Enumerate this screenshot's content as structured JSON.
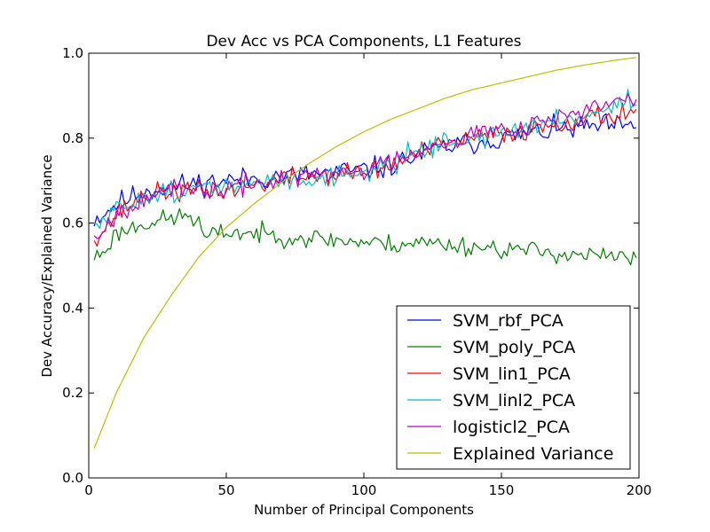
{
  "chart_data": {
    "type": "line",
    "title": "Dev Acc vs PCA Components, L1 Features",
    "xlabel": "Number of Principal Components",
    "ylabel": "Dev Accuracy/Explained Variance",
    "xlim": [
      0,
      200
    ],
    "ylim": [
      0.0,
      1.0
    ],
    "xticks": [
      0,
      50,
      100,
      150,
      200
    ],
    "yticks": [
      0.0,
      0.2,
      0.4,
      0.6,
      0.8,
      1.0
    ],
    "xtick_labels": [
      "0",
      "50",
      "100",
      "150",
      "200"
    ],
    "ytick_labels": [
      "0.0",
      "0.2",
      "0.4",
      "0.6",
      "0.8",
      "1.0"
    ],
    "grid": false,
    "legend_position": "lower-right",
    "x_range": [
      2,
      199
    ],
    "series": [
      {
        "name": "SVM_rbf_PCA",
        "color": "#0000ff",
        "anchors": [
          [
            2,
            0.61
          ],
          [
            5,
            0.62
          ],
          [
            10,
            0.645
          ],
          [
            20,
            0.675
          ],
          [
            30,
            0.685
          ],
          [
            40,
            0.695
          ],
          [
            50,
            0.7
          ],
          [
            60,
            0.705
          ],
          [
            70,
            0.71
          ],
          [
            80,
            0.715
          ],
          [
            90,
            0.72
          ],
          [
            100,
            0.725
          ],
          [
            110,
            0.735
          ],
          [
            120,
            0.76
          ],
          [
            130,
            0.78
          ],
          [
            140,
            0.79
          ],
          [
            150,
            0.8
          ],
          [
            160,
            0.81
          ],
          [
            170,
            0.82
          ],
          [
            180,
            0.825
          ],
          [
            190,
            0.83
          ],
          [
            199,
            0.82
          ]
        ],
        "noise": 0.02,
        "seed": 11
      },
      {
        "name": "SVM_poly_PCA",
        "color": "#008000",
        "anchors": [
          [
            2,
            0.52
          ],
          [
            5,
            0.53
          ],
          [
            10,
            0.575
          ],
          [
            20,
            0.6
          ],
          [
            30,
            0.61
          ],
          [
            36,
            0.62
          ],
          [
            40,
            0.6
          ],
          [
            42,
            0.565
          ],
          [
            50,
            0.58
          ],
          [
            60,
            0.575
          ],
          [
            70,
            0.57
          ],
          [
            80,
            0.565
          ],
          [
            90,
            0.56
          ],
          [
            100,
            0.555
          ],
          [
            110,
            0.55
          ],
          [
            120,
            0.555
          ],
          [
            130,
            0.55
          ],
          [
            140,
            0.545
          ],
          [
            150,
            0.54
          ],
          [
            160,
            0.535
          ],
          [
            170,
            0.53
          ],
          [
            180,
            0.525
          ],
          [
            190,
            0.52
          ],
          [
            199,
            0.515
          ]
        ],
        "noise": 0.017,
        "seed": 23
      },
      {
        "name": "SVM_lin1_PCA",
        "color": "#ff0000",
        "anchors": [
          [
            2,
            0.57
          ],
          [
            5,
            0.58
          ],
          [
            10,
            0.62
          ],
          [
            20,
            0.665
          ],
          [
            30,
            0.675
          ],
          [
            40,
            0.675
          ],
          [
            50,
            0.675
          ],
          [
            60,
            0.69
          ],
          [
            70,
            0.705
          ],
          [
            80,
            0.71
          ],
          [
            90,
            0.715
          ],
          [
            100,
            0.72
          ],
          [
            110,
            0.735
          ],
          [
            120,
            0.765
          ],
          [
            130,
            0.785
          ],
          [
            140,
            0.8
          ],
          [
            150,
            0.81
          ],
          [
            160,
            0.82
          ],
          [
            170,
            0.835
          ],
          [
            180,
            0.845
          ],
          [
            190,
            0.855
          ],
          [
            199,
            0.865
          ]
        ],
        "noise": 0.018,
        "seed": 37
      },
      {
        "name": "SVM_linl2_PCA",
        "color": "#00bfbf",
        "anchors": [
          [
            2,
            0.59
          ],
          [
            5,
            0.6
          ],
          [
            10,
            0.63
          ],
          [
            20,
            0.665
          ],
          [
            30,
            0.675
          ],
          [
            40,
            0.68
          ],
          [
            50,
            0.685
          ],
          [
            60,
            0.69
          ],
          [
            70,
            0.7
          ],
          [
            80,
            0.705
          ],
          [
            90,
            0.71
          ],
          [
            100,
            0.72
          ],
          [
            110,
            0.74
          ],
          [
            120,
            0.775
          ],
          [
            130,
            0.79
          ],
          [
            140,
            0.8
          ],
          [
            150,
            0.81
          ],
          [
            160,
            0.825
          ],
          [
            170,
            0.84
          ],
          [
            180,
            0.855
          ],
          [
            190,
            0.87
          ],
          [
            196,
            0.9
          ],
          [
            199,
            0.875
          ]
        ],
        "noise": 0.018,
        "seed": 51
      },
      {
        "name": "logisticl2_PCA",
        "color": "#bf00bf",
        "anchors": [
          [
            2,
            0.575
          ],
          [
            5,
            0.585
          ],
          [
            10,
            0.62
          ],
          [
            20,
            0.665
          ],
          [
            30,
            0.675
          ],
          [
            40,
            0.675
          ],
          [
            50,
            0.68
          ],
          [
            60,
            0.69
          ],
          [
            70,
            0.705
          ],
          [
            80,
            0.71
          ],
          [
            90,
            0.715
          ],
          [
            100,
            0.725
          ],
          [
            110,
            0.745
          ],
          [
            120,
            0.775
          ],
          [
            130,
            0.795
          ],
          [
            140,
            0.81
          ],
          [
            150,
            0.82
          ],
          [
            160,
            0.835
          ],
          [
            170,
            0.85
          ],
          [
            180,
            0.865
          ],
          [
            190,
            0.88
          ],
          [
            199,
            0.89
          ]
        ],
        "noise": 0.018,
        "seed": 67
      },
      {
        "name": "Explained Variance",
        "color": "#bfbf00",
        "smooth": true,
        "anchors": [
          [
            2,
            0.07
          ],
          [
            10,
            0.2
          ],
          [
            20,
            0.33
          ],
          [
            30,
            0.43
          ],
          [
            40,
            0.52
          ],
          [
            50,
            0.59
          ],
          [
            60,
            0.645
          ],
          [
            70,
            0.695
          ],
          [
            80,
            0.74
          ],
          [
            90,
            0.78
          ],
          [
            100,
            0.815
          ],
          [
            110,
            0.845
          ],
          [
            120,
            0.87
          ],
          [
            130,
            0.895
          ],
          [
            140,
            0.915
          ],
          [
            150,
            0.93
          ],
          [
            160,
            0.945
          ],
          [
            170,
            0.96
          ],
          [
            180,
            0.972
          ],
          [
            190,
            0.982
          ],
          [
            199,
            0.99
          ]
        ]
      }
    ]
  }
}
